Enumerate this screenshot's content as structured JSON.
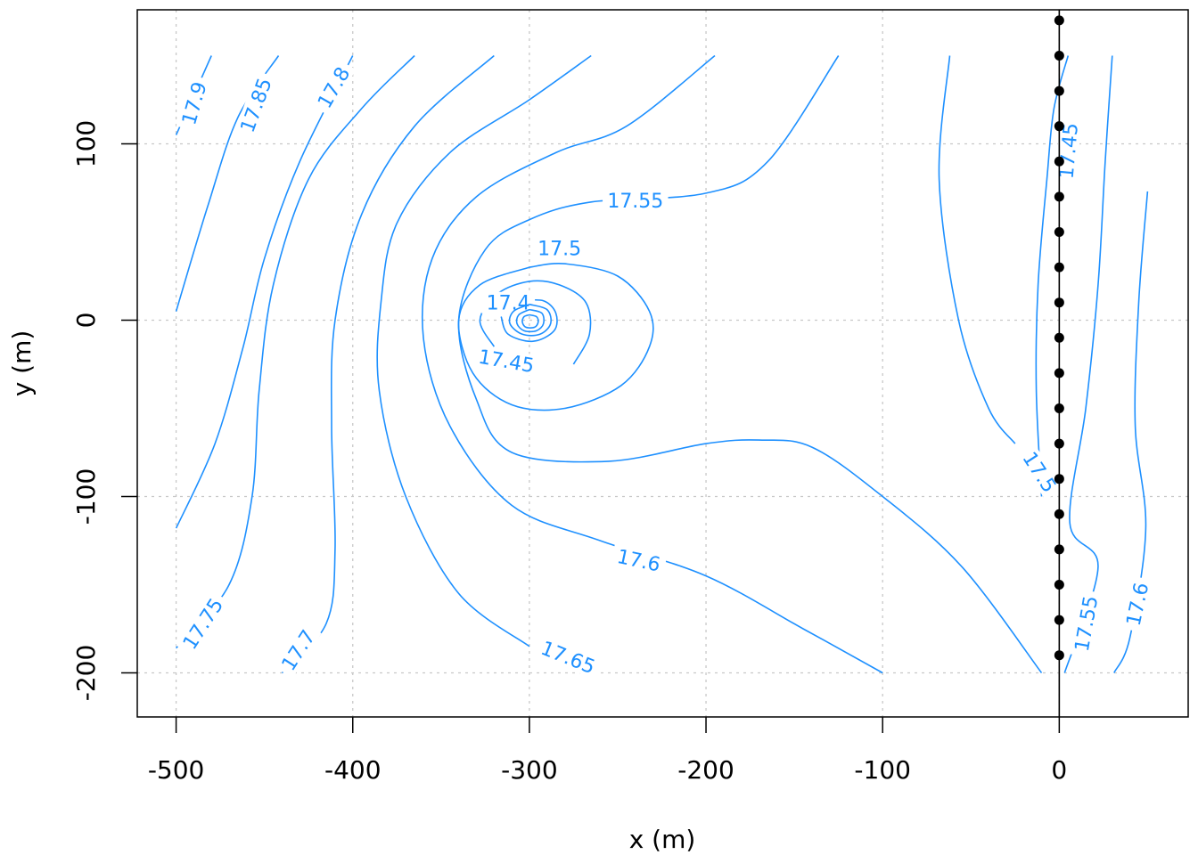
{
  "chart_data": {
    "type": "contour",
    "title": "",
    "xlabel": "x (m)",
    "ylabel": "y (m)",
    "xlim": [
      -522,
      73
    ],
    "ylim": [
      -225,
      176
    ],
    "grid": true,
    "x_ticks": [
      {
        "value": -500,
        "label": "-500"
      },
      {
        "value": -400,
        "label": "-400"
      },
      {
        "value": -300,
        "label": "-300"
      },
      {
        "value": -200,
        "label": "-200"
      },
      {
        "value": -100,
        "label": "-100"
      },
      {
        "value": 0,
        "label": "0"
      }
    ],
    "y_ticks": [
      {
        "value": -200,
        "label": "-200"
      },
      {
        "value": -100,
        "label": "-100"
      },
      {
        "value": 0,
        "label": "0"
      },
      {
        "value": 100,
        "label": "100"
      }
    ],
    "contour_color": "#1E90FF",
    "well_color": "#000000",
    "well_line_x": 0,
    "contours": [
      {
        "label": "17.9",
        "label_at": [
          -490,
          123
        ],
        "label_angle": -74,
        "points": [
          [
            -500,
            105
          ],
          [
            -480,
            150
          ]
        ]
      },
      {
        "label": "17.85",
        "label_at": [
          -455,
          122
        ],
        "label_angle": -70,
        "points": [
          [
            -500,
            5
          ],
          [
            -482,
            65
          ],
          [
            -465,
            115
          ],
          [
            -442,
            150
          ]
        ]
      },
      {
        "label": "17.8",
        "label_at": [
          -411,
          132
        ],
        "label_angle": -60,
        "points": [
          [
            -500,
            -118
          ],
          [
            -478,
            -70
          ],
          [
            -462,
            -15
          ],
          [
            -450,
            35
          ],
          [
            -430,
            90
          ],
          [
            -400,
            150
          ]
        ]
      },
      {
        "label": "17.75",
        "label_at": [
          -485,
          -172
        ],
        "label_angle": -57,
        "points": [
          [
            -500,
            -186
          ],
          [
            -470,
            -150
          ],
          [
            -457,
            -100
          ],
          [
            -453,
            -40
          ],
          [
            -445,
            20
          ],
          [
            -425,
            80
          ],
          [
            -395,
            120
          ],
          [
            -365,
            150
          ]
        ]
      },
      {
        "label": "17.7",
        "label_at": [
          -431,
          -187
        ],
        "label_angle": -57,
        "points": [
          [
            -440,
            -200
          ],
          [
            -415,
            -172
          ],
          [
            -410,
            -130
          ],
          [
            -412,
            -60
          ],
          [
            -410,
            0
          ],
          [
            -395,
            60
          ],
          [
            -365,
            110
          ],
          [
            -320,
            150
          ]
        ]
      },
      {
        "label": "17.65",
        "label_at": [
          -278,
          -191
        ],
        "label_angle": 22,
        "points": [
          [
            -300,
            -185
          ],
          [
            -340,
            -155
          ],
          [
            -370,
            -100
          ],
          [
            -385,
            -40
          ],
          [
            -384,
            10
          ],
          [
            -375,
            55
          ],
          [
            -345,
            95
          ],
          [
            -300,
            125
          ],
          [
            -265,
            150
          ]
        ]
      },
      {
        "label": "17.6",
        "label_at": [
          -238,
          -136
        ],
        "label_angle": 12,
        "points": [
          [
            -100,
            -200
          ],
          [
            -145,
            -175
          ],
          [
            -200,
            -145
          ],
          [
            -260,
            -125
          ],
          [
            -310,
            -105
          ],
          [
            -345,
            -60
          ],
          [
            -360,
            -10
          ],
          [
            -355,
            35
          ],
          [
            -330,
            70
          ],
          [
            -285,
            95
          ],
          [
            -245,
            110
          ],
          [
            -195,
            150
          ]
        ]
      },
      {
        "label": "17.55",
        "label_at": [
          -240,
          68
        ],
        "label_angle": 0,
        "points": [
          [
            -10,
            -200
          ],
          [
            -55,
            -140
          ],
          [
            -100,
            -100
          ],
          [
            -140,
            -72
          ],
          [
            -170,
            -68
          ],
          [
            -200,
            -70
          ],
          [
            -255,
            -80
          ],
          [
            -310,
            -75
          ],
          [
            -330,
            -45
          ],
          [
            -340,
            0
          ],
          [
            -325,
            40
          ],
          [
            -300,
            57
          ],
          [
            -265,
            67
          ],
          [
            -200,
            72
          ],
          [
            -165,
            90
          ],
          [
            -125,
            150
          ]
        ]
      },
      {
        "label": "17.5",
        "label_at": [
          -283,
          41
        ],
        "label_angle": 0,
        "points": [
          [
            -300,
            30
          ],
          [
            -328,
            20
          ],
          [
            -340,
            0
          ],
          [
            -332,
            -30
          ],
          [
            -310,
            -48
          ],
          [
            -280,
            -50
          ],
          [
            -248,
            -37
          ],
          [
            -232,
            -15
          ],
          [
            -232,
            5
          ],
          [
            -250,
            25
          ],
          [
            -280,
            32
          ],
          [
            -300,
            30
          ]
        ]
      },
      {
        "label": "17.45",
        "label_at": [
          -313,
          -23
        ],
        "label_angle": 10,
        "points": [
          [
            -320,
            -15
          ],
          [
            -328,
            0
          ],
          [
            -318,
            15
          ],
          [
            -300,
            22
          ],
          [
            -283,
            20
          ],
          [
            -268,
            10
          ],
          [
            -266,
            -8
          ],
          [
            -275,
            -25
          ]
        ]
      },
      {
        "label": "17.4",
        "label_at": [
          -312,
          10
        ],
        "label_angle": 0,
        "points": [
          [
            -305,
            11
          ],
          [
            -292,
            11
          ],
          [
            -285,
            4
          ],
          [
            -286,
            -6
          ],
          [
            -298,
            -12
          ],
          [
            -312,
            -8
          ],
          [
            -316,
            2
          ]
        ]
      },
      {
        "label": "",
        "label_at": null,
        "label_angle": 0,
        "points": [
          [
            -300,
            9
          ],
          [
            -290,
            6
          ],
          [
            -288,
            -2
          ],
          [
            -294,
            -8
          ],
          [
            -304,
            -8
          ],
          [
            -311,
            -2
          ],
          [
            -309,
            5
          ],
          [
            -300,
            9
          ]
        ]
      },
      {
        "label": "",
        "label_at": null,
        "label_angle": 0,
        "points": [
          [
            -300,
            6
          ],
          [
            -293,
            4
          ],
          [
            -292,
            -2
          ],
          [
            -296,
            -6
          ],
          [
            -303,
            -6
          ],
          [
            -307,
            -2
          ],
          [
            -306,
            3
          ],
          [
            -300,
            6
          ]
        ]
      },
      {
        "label": "",
        "label_at": null,
        "label_angle": 0,
        "points": [
          [
            -300,
            3
          ],
          [
            -296,
            2
          ],
          [
            -295,
            -1
          ],
          [
            -297,
            -4
          ],
          [
            -302,
            -4
          ],
          [
            -304,
            -1
          ],
          [
            -303,
            2
          ],
          [
            -300,
            3
          ]
        ]
      },
      {
        "label": "17.45",
        "label_at": [
          5,
          96
        ],
        "label_angle": -85,
        "points": [
          [
            5,
            150
          ],
          [
            -3,
            120
          ],
          [
            -7,
            80
          ],
          [
            -12,
            20
          ],
          [
            -13,
            -40
          ],
          [
            -10,
            -100
          ]
        ]
      },
      {
        "label": "17.5",
        "label_at": [
          -11,
          -86
        ],
        "label_angle": 57,
        "points": [
          [
            -62,
            150
          ],
          [
            -68,
            80
          ],
          [
            -57,
            0
          ],
          [
            -40,
            -50
          ],
          [
            -25,
            -70
          ]
        ]
      },
      {
        "label": "17.55",
        "label_at": [
          15,
          -172
        ],
        "label_angle": -80,
        "points": [
          [
            30,
            150
          ],
          [
            26,
            90
          ],
          [
            22,
            20
          ],
          [
            15,
            -50
          ],
          [
            6,
            -115
          ],
          [
            22,
            -140
          ],
          [
            3,
            -200
          ]
        ]
      },
      {
        "label": "17.6",
        "label_at": [
          44,
          -161
        ],
        "label_angle": -78,
        "points": [
          [
            50,
            73
          ],
          [
            45,
            10
          ],
          [
            43,
            -60
          ],
          [
            49,
            -118
          ],
          [
            40,
            -180
          ],
          [
            31,
            -200
          ]
        ]
      }
    ],
    "well_points": [
      {
        "x": 0,
        "y": 170
      },
      {
        "x": 0,
        "y": 150
      },
      {
        "x": 0,
        "y": 130
      },
      {
        "x": 0,
        "y": 110
      },
      {
        "x": 0,
        "y": 90
      },
      {
        "x": 0,
        "y": 70
      },
      {
        "x": 0,
        "y": 50
      },
      {
        "x": 0,
        "y": 30
      },
      {
        "x": 0,
        "y": 10
      },
      {
        "x": 0,
        "y": -10
      },
      {
        "x": 0,
        "y": -30
      },
      {
        "x": 0,
        "y": -50
      },
      {
        "x": 0,
        "y": -70
      },
      {
        "x": 0,
        "y": -90
      },
      {
        "x": 0,
        "y": -110
      },
      {
        "x": 0,
        "y": -130
      },
      {
        "x": 0,
        "y": -150
      },
      {
        "x": 0,
        "y": -170
      },
      {
        "x": 0,
        "y": -190
      }
    ]
  }
}
